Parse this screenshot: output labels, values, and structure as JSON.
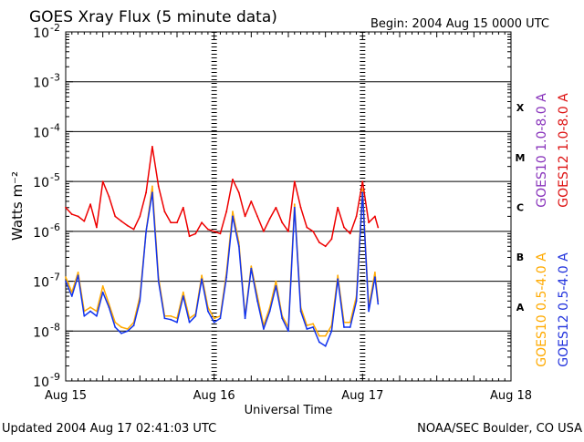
{
  "header": {
    "title": "GOES Xray Flux (5 minute data)",
    "begin": "Begin:  2004 Aug 15 0000 UTC"
  },
  "footer": {
    "updated": "Updated 2004 Aug 17 02:41:03 UTC",
    "credit": "NOAA/SEC Boulder, CO USA"
  },
  "chart_data": {
    "type": "line",
    "title": "GOES Xray Flux (5 minute data)",
    "xlabel": "Universal Time",
    "ylabel": "Watts m⁻²",
    "y_scale": "log",
    "ylim": [
      1e-09,
      0.01
    ],
    "xlim": [
      "2004-08-15 00:00",
      "2004-08-18 00:00"
    ],
    "x_tick_labels": [
      "Aug 15",
      "Aug 16",
      "Aug 17",
      "Aug 18"
    ],
    "y_tick_labels": [
      {
        "base": "10",
        "exp": "-9"
      },
      {
        "base": "10",
        "exp": "-8"
      },
      {
        "base": "10",
        "exp": "-7"
      },
      {
        "base": "10",
        "exp": "-6"
      },
      {
        "base": "10",
        "exp": "-5"
      },
      {
        "base": "10",
        "exp": "-4"
      },
      {
        "base": "10",
        "exp": "-3"
      },
      {
        "base": "10",
        "exp": "-2"
      }
    ],
    "grid": true,
    "flare_classes": [
      "X",
      "M",
      "C",
      "B",
      "A"
    ],
    "right_labels_top": [
      {
        "text": "GOES12 1.0-8.0 A",
        "color": "#dd1111"
      },
      {
        "text": "GOES10 1.0-8.0 A",
        "color": "#8833bb"
      }
    ],
    "right_labels_bottom": [
      {
        "text": "GOES12 0.5-4.0 A",
        "color": "#2233dd"
      },
      {
        "text": "GOES10 0.5-4.0 A",
        "color": "#ffaa00"
      }
    ],
    "series": [
      {
        "name": "GOES12 1.0-8.0 A",
        "color": "#ee0000",
        "x": [
          "2004-08-15 00:00",
          "2004-08-15 01:00",
          "2004-08-15 02:00",
          "2004-08-15 03:00",
          "2004-08-15 04:00",
          "2004-08-15 05:00",
          "2004-08-15 06:00",
          "2004-08-15 07:00",
          "2004-08-15 08:00",
          "2004-08-15 09:00",
          "2004-08-15 10:00",
          "2004-08-15 11:00",
          "2004-08-15 12:00",
          "2004-08-15 13:00",
          "2004-08-15 14:00",
          "2004-08-15 15:00",
          "2004-08-15 16:00",
          "2004-08-15 17:00",
          "2004-08-15 18:00",
          "2004-08-15 19:00",
          "2004-08-15 20:00",
          "2004-08-15 21:00",
          "2004-08-15 22:00",
          "2004-08-15 23:00",
          "2004-08-16 00:00",
          "2004-08-16 01:00",
          "2004-08-16 02:00",
          "2004-08-16 03:00",
          "2004-08-16 04:00",
          "2004-08-16 05:00",
          "2004-08-16 06:00",
          "2004-08-16 07:00",
          "2004-08-16 08:00",
          "2004-08-16 09:00",
          "2004-08-16 10:00",
          "2004-08-16 11:00",
          "2004-08-16 12:00",
          "2004-08-16 13:00",
          "2004-08-16 14:00",
          "2004-08-16 15:00",
          "2004-08-16 16:00",
          "2004-08-16 17:00",
          "2004-08-16 18:00",
          "2004-08-16 19:00",
          "2004-08-16 20:00",
          "2004-08-16 21:00",
          "2004-08-16 22:00",
          "2004-08-16 23:00",
          "2004-08-17 00:00",
          "2004-08-17 01:00",
          "2004-08-17 02:00",
          "2004-08-17 02:30"
        ],
        "y": [
          3e-06,
          2.2e-06,
          2e-06,
          1.6e-06,
          3.5e-06,
          1.2e-06,
          1e-05,
          5e-06,
          2e-06,
          1.6e-06,
          1.3e-06,
          1.1e-06,
          2e-06,
          6e-06,
          5e-05,
          8e-06,
          2.5e-06,
          1.5e-06,
          1.5e-06,
          3e-06,
          8e-07,
          9e-07,
          1.5e-06,
          1.1e-06,
          1e-06,
          9e-07,
          2.5e-06,
          1.1e-05,
          6e-06,
          2e-06,
          4e-06,
          2e-06,
          1e-06,
          1.8e-06,
          3e-06,
          1.5e-06,
          1e-06,
          1e-05,
          3e-06,
          1.2e-06,
          1e-06,
          6e-07,
          5e-07,
          7e-07,
          3e-06,
          1.2e-06,
          9e-07,
          2e-06,
          1e-05,
          1.5e-06,
          2e-06,
          1.2e-06
        ]
      },
      {
        "name": "GOES10 0.5-4.0 A",
        "color": "#ffaa00",
        "x": [
          "2004-08-15 00:00",
          "2004-08-15 01:00",
          "2004-08-15 02:00",
          "2004-08-15 03:00",
          "2004-08-15 04:00",
          "2004-08-15 05:00",
          "2004-08-15 06:00",
          "2004-08-15 07:00",
          "2004-08-15 08:00",
          "2004-08-15 09:00",
          "2004-08-15 10:00",
          "2004-08-15 11:00",
          "2004-08-15 12:00",
          "2004-08-15 13:00",
          "2004-08-15 14:00",
          "2004-08-15 15:00",
          "2004-08-15 16:00",
          "2004-08-15 17:00",
          "2004-08-15 18:00",
          "2004-08-15 19:00",
          "2004-08-15 20:00",
          "2004-08-15 21:00",
          "2004-08-15 22:00",
          "2004-08-15 23:00",
          "2004-08-16 00:00",
          "2004-08-16 01:00",
          "2004-08-16 02:00",
          "2004-08-16 03:00",
          "2004-08-16 04:00",
          "2004-08-16 05:00",
          "2004-08-16 06:00",
          "2004-08-16 07:00",
          "2004-08-16 08:00",
          "2004-08-16 09:00",
          "2004-08-16 10:00",
          "2004-08-16 11:00",
          "2004-08-16 12:00",
          "2004-08-16 13:00",
          "2004-08-16 14:00",
          "2004-08-16 15:00",
          "2004-08-16 16:00",
          "2004-08-16 17:00",
          "2004-08-16 18:00",
          "2004-08-16 19:00",
          "2004-08-16 20:00",
          "2004-08-16 21:00",
          "2004-08-16 22:00",
          "2004-08-16 23:00",
          "2004-08-17 00:00",
          "2004-08-17 01:00",
          "2004-08-17 02:00",
          "2004-08-17 02:30"
        ],
        "y": [
          1.2e-07,
          6e-08,
          1.5e-07,
          2.5e-08,
          3e-08,
          2.5e-08,
          8e-08,
          3.5e-08,
          1.5e-08,
          1.2e-08,
          1.1e-08,
          1.5e-08,
          5e-08,
          1e-06,
          8e-06,
          1.2e-07,
          2e-08,
          2e-08,
          1.8e-08,
          6e-08,
          1.8e-08,
          2.2e-08,
          1.3e-07,
          3e-08,
          1.8e-08,
          2e-08,
          1.5e-07,
          2.5e-06,
          6e-07,
          2e-08,
          2e-07,
          5e-08,
          1.3e-08,
          3e-08,
          1e-07,
          2e-08,
          1.2e-08,
          3.5e-06,
          3e-08,
          1.3e-08,
          1.4e-08,
          8e-09,
          8e-09,
          1.3e-08,
          1.3e-07,
          1.5e-08,
          1.5e-08,
          5e-08,
          7e-06,
          3e-08,
          1.5e-07,
          4e-08
        ]
      },
      {
        "name": "GOES12 0.5-4.0 A",
        "color": "#1133ee",
        "x": [
          "2004-08-15 00:00",
          "2004-08-15 01:00",
          "2004-08-15 02:00",
          "2004-08-15 03:00",
          "2004-08-15 04:00",
          "2004-08-15 05:00",
          "2004-08-15 06:00",
          "2004-08-15 07:00",
          "2004-08-15 08:00",
          "2004-08-15 09:00",
          "2004-08-15 10:00",
          "2004-08-15 11:00",
          "2004-08-15 12:00",
          "2004-08-15 13:00",
          "2004-08-15 14:00",
          "2004-08-15 15:00",
          "2004-08-15 16:00",
          "2004-08-15 17:00",
          "2004-08-15 18:00",
          "2004-08-15 19:00",
          "2004-08-15 20:00",
          "2004-08-15 21:00",
          "2004-08-15 22:00",
          "2004-08-15 23:00",
          "2004-08-16 00:00",
          "2004-08-16 01:00",
          "2004-08-16 02:00",
          "2004-08-16 03:00",
          "2004-08-16 04:00",
          "2004-08-16 05:00",
          "2004-08-16 06:00",
          "2004-08-16 07:00",
          "2004-08-16 08:00",
          "2004-08-16 09:00",
          "2004-08-16 10:00",
          "2004-08-16 11:00",
          "2004-08-16 12:00",
          "2004-08-16 13:00",
          "2004-08-16 14:00",
          "2004-08-16 15:00",
          "2004-08-16 16:00",
          "2004-08-16 17:00",
          "2004-08-16 18:00",
          "2004-08-16 19:00",
          "2004-08-16 20:00",
          "2004-08-16 21:00",
          "2004-08-16 22:00",
          "2004-08-16 23:00",
          "2004-08-17 00:00",
          "2004-08-17 01:00",
          "2004-08-17 02:00",
          "2004-08-17 02:30"
        ],
        "y": [
          1e-07,
          5e-08,
          1.3e-07,
          2e-08,
          2.5e-08,
          2e-08,
          6e-08,
          3e-08,
          1.2e-08,
          9e-09,
          1e-08,
          1.3e-08,
          4e-08,
          1e-06,
          6e-06,
          1e-07,
          1.8e-08,
          1.7e-08,
          1.5e-08,
          5e-08,
          1.5e-08,
          2e-08,
          1.1e-07,
          2.5e-08,
          1.5e-08,
          1.8e-08,
          1.2e-07,
          2e-06,
          5e-07,
          1.8e-08,
          1.8e-07,
          4e-08,
          1.1e-08,
          2.5e-08,
          8e-08,
          1.8e-08,
          1e-08,
          3e-06,
          2.5e-08,
          1.1e-08,
          1.2e-08,
          6e-09,
          5e-09,
          1e-08,
          1.1e-07,
          1.2e-08,
          1.2e-08,
          4e-08,
          6e-06,
          2.5e-08,
          1.2e-07,
          3.5e-08
        ]
      }
    ]
  }
}
